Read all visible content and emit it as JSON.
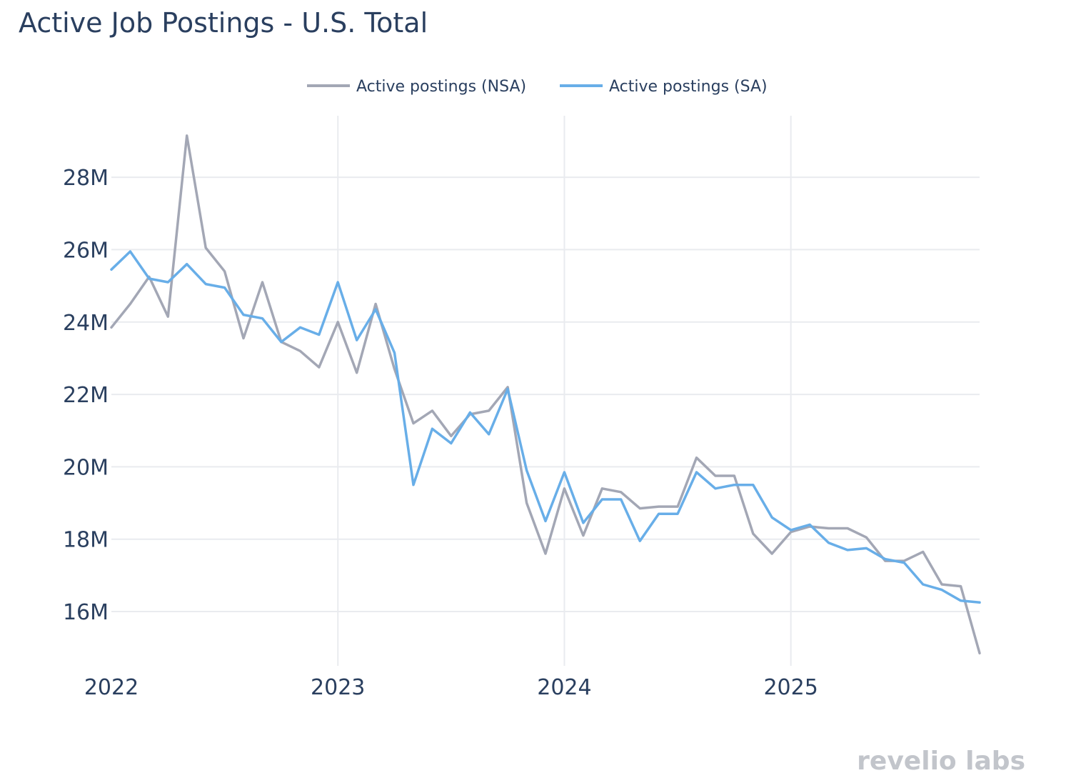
{
  "logo": "revelio labs",
  "chart_data": {
    "type": "line",
    "title": "Active Job Postings - U.S. Total",
    "xlabel": "",
    "ylabel": "",
    "legend": "top-center",
    "grid": true,
    "xlim": [
      2022.0,
      2025.8333
    ],
    "ylim": [
      14.5,
      29.7
    ],
    "x_ticks": [
      {
        "value": 2022,
        "label": "2022"
      },
      {
        "value": 2023,
        "label": "2023"
      },
      {
        "value": 2024,
        "label": "2024"
      },
      {
        "value": 2025,
        "label": "2025"
      }
    ],
    "y_ticks": [
      {
        "value": 16,
        "label": "16M"
      },
      {
        "value": 18,
        "label": "18M"
      },
      {
        "value": 20,
        "label": "20M"
      },
      {
        "value": 22,
        "label": "22M"
      },
      {
        "value": 24,
        "label": "24M"
      },
      {
        "value": 26,
        "label": "26M"
      },
      {
        "value": 28,
        "label": "28M"
      }
    ],
    "x_start": 2022.0,
    "x_step_months": 1,
    "value_unit": "millions",
    "series": [
      {
        "name": "Active postings (NSA)",
        "color": "#a3a7b5",
        "values": [
          23.85,
          24.5,
          25.25,
          24.15,
          29.15,
          26.05,
          25.4,
          23.55,
          25.1,
          23.45,
          23.2,
          22.75,
          24.0,
          22.6,
          24.5,
          22.7,
          21.2,
          21.55,
          20.85,
          21.45,
          21.55,
          22.2,
          19.0,
          17.6,
          19.4,
          18.1,
          19.4,
          19.3,
          18.85,
          18.9,
          18.9,
          20.25,
          19.75,
          19.75,
          18.15,
          17.6,
          18.2,
          18.35,
          18.3,
          18.3,
          18.05,
          17.4,
          17.4,
          17.65,
          16.75,
          16.7,
          14.85
        ]
      },
      {
        "name": "Active postings (SA)",
        "color": "#68aee8",
        "values": [
          25.45,
          25.95,
          25.2,
          25.1,
          25.6,
          25.05,
          24.95,
          24.2,
          24.1,
          23.45,
          23.85,
          23.65,
          25.1,
          23.5,
          24.35,
          23.15,
          19.5,
          21.05,
          20.65,
          21.5,
          20.9,
          22.15,
          19.9,
          18.5,
          19.85,
          18.45,
          19.1,
          19.1,
          17.95,
          18.7,
          18.7,
          19.85,
          19.4,
          19.5,
          19.5,
          18.6,
          18.25,
          18.4,
          17.9,
          17.7,
          17.75,
          17.45,
          17.35,
          16.75,
          16.6,
          16.3,
          16.25
        ]
      }
    ]
  }
}
